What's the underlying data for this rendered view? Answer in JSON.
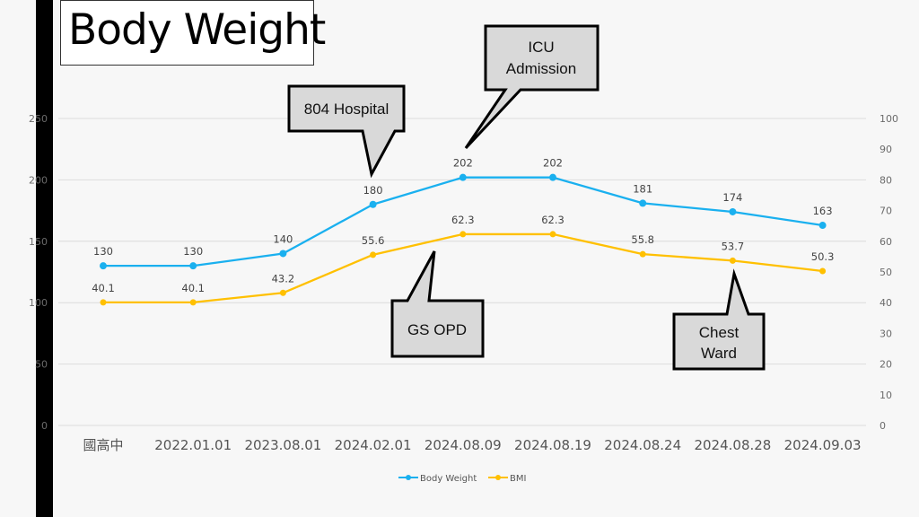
{
  "title": "Body Weight",
  "colors": {
    "body_weight": "#1ab0ef",
    "bmi": "#ffc000",
    "grid": "#dcdcdc",
    "callout_fill": "#d9d9d9",
    "callout_stroke": "#000000"
  },
  "chart_data": {
    "type": "line",
    "title": "Body Weight",
    "categories": [
      "國高中",
      "2022.01.01",
      "2023.08.01",
      "2024.02.01",
      "2024.08.09",
      "2024.08.19",
      "2024.08.24",
      "2024.08.28",
      "2024.09.03"
    ],
    "series": [
      {
        "name": "Body Weight",
        "axis": "left",
        "values": [
          130,
          130,
          140,
          180,
          202,
          202,
          181,
          174,
          163
        ],
        "labels": [
          "130",
          "130",
          "140",
          "180",
          "202",
          "202",
          "181",
          "174",
          "163"
        ]
      },
      {
        "name": "BMI",
        "axis": "right",
        "values": [
          40.1,
          40.1,
          43.2,
          55.6,
          62.3,
          62.3,
          55.8,
          53.7,
          50.3
        ],
        "labels": [
          "40.1",
          "40.1",
          "43.2",
          "55.6",
          "62.3",
          "62.3",
          "55.8",
          "53.7",
          "50.3"
        ]
      }
    ],
    "y_left": {
      "min": 0,
      "max": 250,
      "ticks": [
        "0",
        "50",
        "100",
        "150",
        "200",
        "250"
      ]
    },
    "y_right": {
      "min": 0,
      "max": 100,
      "ticks": [
        "0",
        "10",
        "20",
        "30",
        "40",
        "50",
        "60",
        "70",
        "80",
        "90",
        "100"
      ]
    },
    "grid": true,
    "legend": {
      "position": "bottom",
      "entries": [
        "Body Weight",
        "BMI"
      ]
    },
    "annotations": [
      {
        "text": [
          "804 Hospital"
        ],
        "category": "2024.02.01",
        "series": "Body Weight"
      },
      {
        "text": [
          "ICU",
          "Admission"
        ],
        "category": "2024.08.09",
        "series": "Body Weight"
      },
      {
        "text": [
          "GS OPD"
        ],
        "category": "2024.08.09",
        "series": "BMI"
      },
      {
        "text": [
          "Chest",
          "Ward"
        ],
        "category": "2024.08.28",
        "series": "BMI"
      }
    ]
  }
}
